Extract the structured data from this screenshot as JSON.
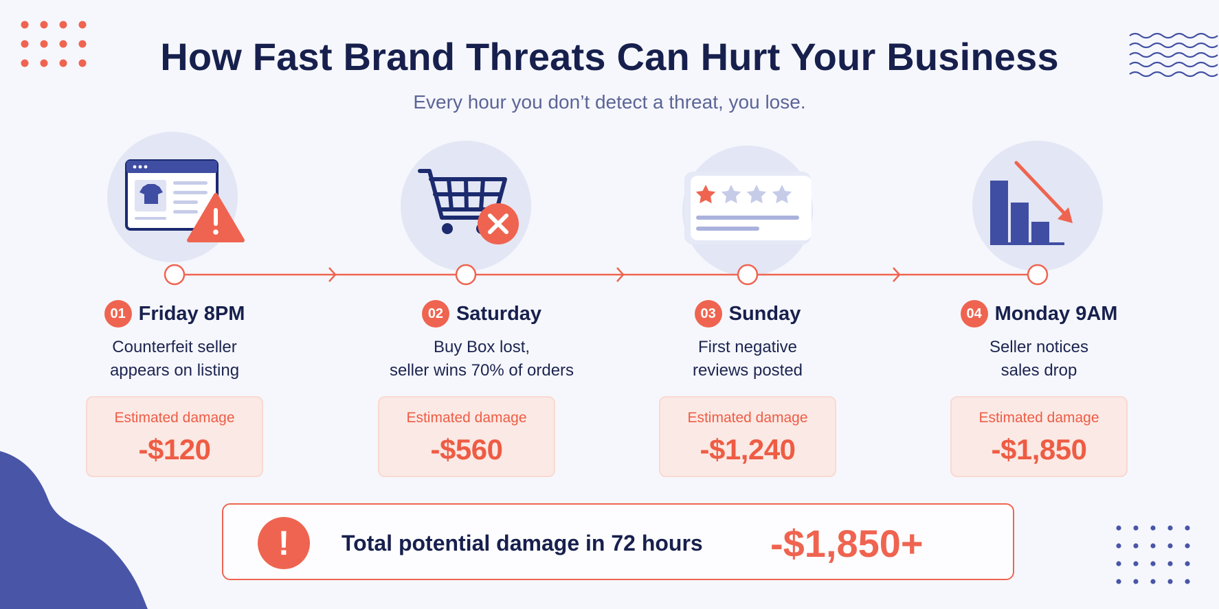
{
  "header": {
    "title": "How Fast Brand Threats Can Hurt Your Business",
    "subtitle": "Every hour you don’t detect a threat, you lose."
  },
  "steps": [
    {
      "number": "01",
      "title": "Friday 8PM",
      "description": "Counterfeit seller\nappears on listing",
      "damage_label": "Estimated damage",
      "damage_value": "-$120",
      "icon": "product-listing-warning-icon"
    },
    {
      "number": "02",
      "title": "Saturday",
      "description": "Buy Box lost,\nseller wins 70% of orders",
      "damage_label": "Estimated damage",
      "damage_value": "-$560",
      "icon": "shopping-cart-x-icon"
    },
    {
      "number": "03",
      "title": "Sunday",
      "description": "First negative\nreviews posted",
      "damage_label": "Estimated damage",
      "damage_value": "-$1,240",
      "icon": "one-star-review-icon"
    },
    {
      "number": "04",
      "title": "Monday 9AM",
      "description": "Seller notices\nsales drop",
      "damage_label": "Estimated damage",
      "damage_value": "-$1,850",
      "icon": "declining-bar-chart-icon"
    }
  ],
  "total": {
    "icon": "exclamation-icon",
    "label": "Total potential damage in 72 hours",
    "value": "-$1,850+"
  },
  "colors": {
    "accent": "#ef6450",
    "navy": "#17204d",
    "indigo": "#3f4ea2",
    "background": "#f6f7fc"
  }
}
